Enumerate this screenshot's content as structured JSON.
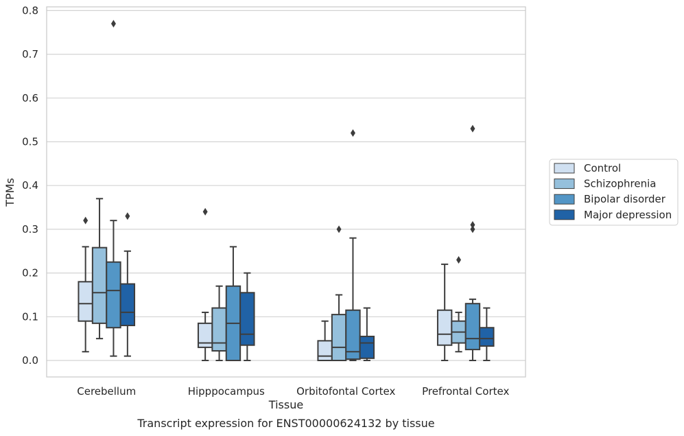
{
  "chart_data": {
    "type": "box",
    "title": "Transcript expression for ENST00000624132 by tissue",
    "xlabel": "Tissue",
    "ylabel": "TPMs",
    "ylim": [
      -0.038,
      0.812
    ],
    "yticks": [
      "0.0",
      "0.1",
      "0.2",
      "0.3",
      "0.4",
      "0.5",
      "0.6",
      "0.7",
      "0.8"
    ],
    "grid": true,
    "legend_position": "right",
    "categories": [
      "Cerebellum",
      "Hipppocampus",
      "Orbitofontal Cortex",
      "Prefrontal Cortex"
    ],
    "series": [
      {
        "name": "Control",
        "color": "#d0e0f1",
        "boxes": [
          {
            "whislo": 0.02,
            "q1": 0.09,
            "med": 0.13,
            "q3": 0.18,
            "whishi": 0.26,
            "fliers": [
              0.32
            ]
          },
          {
            "whislo": 0.0,
            "q1": 0.03,
            "med": 0.04,
            "q3": 0.085,
            "whishi": 0.11,
            "fliers": [
              0.34
            ]
          },
          {
            "whislo": 0.0,
            "q1": 0.0,
            "med": 0.01,
            "q3": 0.045,
            "whishi": 0.09,
            "fliers": []
          },
          {
            "whislo": 0.0,
            "q1": 0.035,
            "med": 0.06,
            "q3": 0.115,
            "whishi": 0.22,
            "fliers": []
          }
        ]
      },
      {
        "name": "Schizophrenia",
        "color": "#95c0dc",
        "boxes": [
          {
            "whislo": 0.05,
            "q1": 0.085,
            "med": 0.155,
            "q3": 0.258,
            "whishi": 0.37,
            "fliers": []
          },
          {
            "whislo": 0.0,
            "q1": 0.022,
            "med": 0.04,
            "q3": 0.12,
            "whishi": 0.17,
            "fliers": []
          },
          {
            "whislo": 0.0,
            "q1": 0.0,
            "med": 0.03,
            "q3": 0.105,
            "whishi": 0.15,
            "fliers": [
              0.3
            ]
          },
          {
            "whislo": 0.02,
            "q1": 0.04,
            "med": 0.065,
            "q3": 0.09,
            "whishi": 0.11,
            "fliers": [
              0.23
            ]
          }
        ]
      },
      {
        "name": "Bipolar disorder",
        "color": "#5396c6",
        "boxes": [
          {
            "whislo": 0.01,
            "q1": 0.075,
            "med": 0.16,
            "q3": 0.225,
            "whishi": 0.32,
            "fliers": [
              0.77
            ]
          },
          {
            "whislo": 0.0,
            "q1": 0.0,
            "med": 0.085,
            "q3": 0.17,
            "whishi": 0.26,
            "fliers": []
          },
          {
            "whislo": 0.0,
            "q1": 0.003,
            "med": 0.02,
            "q3": 0.115,
            "whishi": 0.28,
            "fliers": [
              0.52
            ]
          },
          {
            "whislo": 0.0,
            "q1": 0.025,
            "med": 0.05,
            "q3": 0.13,
            "whishi": 0.14,
            "fliers": [
              0.3,
              0.31,
              0.53
            ]
          }
        ]
      },
      {
        "name": "Major depression",
        "color": "#2062a6",
        "boxes": [
          {
            "whislo": 0.01,
            "q1": 0.08,
            "med": 0.11,
            "q3": 0.175,
            "whishi": 0.25,
            "fliers": [
              0.33
            ]
          },
          {
            "whislo": 0.0,
            "q1": 0.035,
            "med": 0.06,
            "q3": 0.155,
            "whishi": 0.2,
            "fliers": []
          },
          {
            "whislo": 0.0,
            "q1": 0.005,
            "med": 0.04,
            "q3": 0.055,
            "whishi": 0.12,
            "fliers": []
          },
          {
            "whislo": 0.0,
            "q1": 0.033,
            "med": 0.05,
            "q3": 0.075,
            "whishi": 0.12,
            "fliers": []
          }
        ]
      }
    ]
  }
}
